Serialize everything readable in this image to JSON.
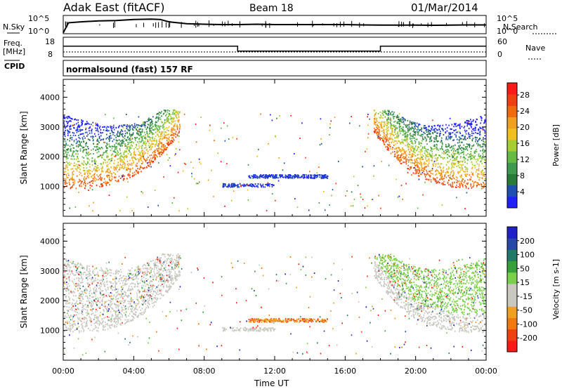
{
  "header": {
    "station": "Adak East (fitACF)",
    "beam": "Beam 18",
    "date": "01/Mar/2014"
  },
  "top_panels": {
    "nsky_label": "N.Sky",
    "nsearch_label": "N.Search",
    "noise_ticks": [
      "10^5",
      "10^0"
    ],
    "freq_label": "Freq.",
    "freq_unit": "[MHz]",
    "freq_ticks": [
      "18",
      "8"
    ],
    "nave_label": "Nave",
    "nave_ticks": [
      "60",
      "0"
    ],
    "cpid_label": "CPID",
    "cpid_text": "normalsound (fast) 157 RF"
  },
  "colors": {
    "power_scale": [
      "#1f1fff",
      "#1f4fb0",
      "#2a7a3a",
      "#3f9a4f",
      "#66bb44",
      "#a8cc33",
      "#f0c020",
      "#f0a020",
      "#f06a10",
      "#f04010",
      "#ff1a1a"
    ],
    "velocity_scale": [
      "#ff1a1a",
      "#f04010",
      "#f07a10",
      "#f0a020",
      "#c8c8c0",
      "#c8c8c0",
      "#7ad04a",
      "#36a03a",
      "#207a66",
      "#2848a8",
      "#2020c8"
    ]
  },
  "chart_data": [
    {
      "type": "heatmap",
      "title": "Power",
      "xlabel": "Time UT",
      "ylabel": "Slant Range [km]",
      "x_ticks": [
        "00:00",
        "04:00",
        "08:00",
        "12:00",
        "16:00",
        "20:00",
        "00:00"
      ],
      "y_ticks": [
        1000,
        2000,
        3000,
        4000
      ],
      "ylim": [
        0,
        4600
      ],
      "xlim_hours": [
        0,
        24
      ],
      "colorbar": {
        "label": "Power [dB]",
        "ticks": [
          4,
          8,
          12,
          16,
          20,
          24,
          28
        ],
        "range": [
          0,
          31
        ]
      },
      "regions": [
        {
          "x": [
            0,
            6.5
          ],
          "y": [
            900,
            3500
          ],
          "desc_value": 24
        },
        {
          "x": [
            8.5,
            15
          ],
          "y": [
            1200,
            1400
          ],
          "desc_value": 4
        },
        {
          "x": [
            17.5,
            24
          ],
          "y": [
            900,
            3500
          ],
          "desc_value": 22
        }
      ]
    },
    {
      "type": "heatmap",
      "title": "Velocity",
      "xlabel": "Time UT",
      "ylabel": "Slant Range [km]",
      "x_ticks": [
        "00:00",
        "04:00",
        "08:00",
        "12:00",
        "16:00",
        "20:00",
        "00:00"
      ],
      "y_ticks": [
        1000,
        2000,
        3000,
        4000
      ],
      "ylim": [
        0,
        4600
      ],
      "xlim_hours": [
        0,
        24
      ],
      "colorbar": {
        "label": "Velocity [m s-1]",
        "ticks": [
          200,
          100,
          50,
          15,
          -15,
          -50,
          -100,
          -200
        ]
      },
      "regions": [
        {
          "x": [
            0,
            6.5
          ],
          "y": [
            900,
            3500
          ],
          "desc_value": 0
        },
        {
          "x": [
            8.5,
            15
          ],
          "y": [
            1200,
            1400
          ],
          "desc_value": -40
        },
        {
          "x": [
            17.5,
            24
          ],
          "y": [
            900,
            3500
          ],
          "desc_value": 20
        }
      ]
    }
  ],
  "noise_series": {
    "x_hours": [
      0,
      0.3,
      1,
      2,
      3,
      4,
      5,
      5.5,
      6,
      7,
      8,
      9,
      10,
      11,
      12,
      13,
      14,
      15,
      16,
      17,
      18,
      19,
      20,
      21,
      22,
      23,
      24
    ],
    "search_level": [
      0.05,
      0.6,
      0.65,
      0.7,
      0.72,
      0.78,
      0.8,
      0.78,
      0.65,
      0.55,
      0.52,
      0.5,
      0.5,
      0.52,
      0.5,
      0.5,
      0.5,
      0.5,
      0.5,
      0.48,
      0.47,
      0.47,
      0.47,
      0.46,
      0.47,
      0.48,
      0.48
    ]
  },
  "freq_series": {
    "x_hours": [
      0,
      9.9,
      9.9,
      18.0,
      18.0,
      24
    ],
    "freq_mhz": [
      13.5,
      13.5,
      10.8,
      10.8,
      13.5,
      13.5
    ]
  }
}
